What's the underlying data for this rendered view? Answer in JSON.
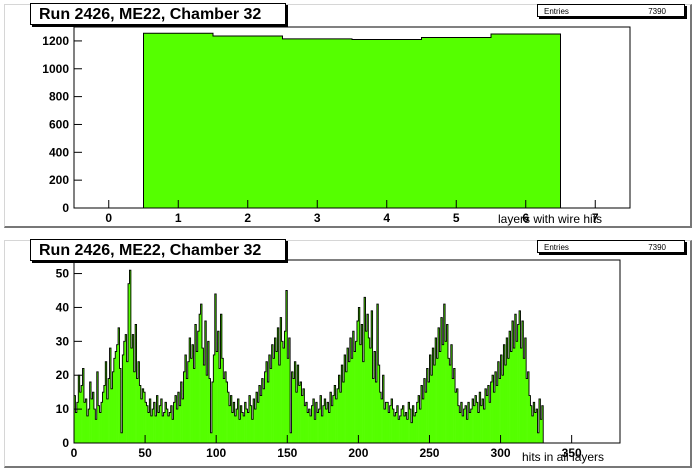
{
  "chart_data": [
    {
      "type": "bar",
      "title": "Run 2426, ME22, Chamber 32",
      "xlabel": "layers with wire hits",
      "ylabel": "",
      "stats": {
        "label": "Entries",
        "value": "7390"
      },
      "xlim": [
        -0.5,
        7.5
      ],
      "ylim": [
        0,
        1300
      ],
      "x_ticks": [
        0,
        1,
        2,
        3,
        4,
        5,
        6,
        7
      ],
      "y_ticks": [
        0,
        200,
        400,
        600,
        800,
        1000,
        1200
      ],
      "categories": [
        1,
        2,
        3,
        4,
        5,
        6
      ],
      "values": [
        1255,
        1235,
        1215,
        1210,
        1225,
        1250
      ],
      "fill_color": "#55ff00",
      "grid": false
    },
    {
      "type": "bar",
      "title": "Run 2426, ME22, Chamber 32",
      "xlabel": "hits in all layers",
      "ylabel": "",
      "stats": {
        "label": "Entries",
        "value": "7390"
      },
      "xlim": [
        0,
        384
      ],
      "ylim": [
        0,
        54
      ],
      "x_ticks": [
        0,
        50,
        100,
        150,
        200,
        250,
        300,
        350
      ],
      "y_ticks": [
        0,
        10,
        20,
        30,
        40,
        50
      ],
      "bin_width": 1,
      "values": [
        14,
        9,
        12,
        20,
        15,
        17,
        22,
        12,
        13,
        8,
        10,
        18,
        13,
        15,
        10,
        7,
        21,
        11,
        9,
        12,
        15,
        17,
        24,
        13,
        19,
        28,
        16,
        21,
        25,
        27,
        29,
        34,
        22,
        3,
        26,
        30,
        32,
        24,
        47,
        51,
        28,
        32,
        21,
        35,
        19,
        24,
        17,
        13,
        16,
        15,
        12,
        11,
        9,
        13,
        8,
        10,
        12,
        8,
        14,
        9,
        11,
        13,
        8,
        9,
        12,
        10,
        8,
        9,
        11,
        7,
        12,
        14,
        10,
        15,
        11,
        18,
        13,
        21,
        26,
        19,
        24,
        31,
        25,
        29,
        22,
        35,
        27,
        33,
        38,
        41,
        28,
        23,
        36,
        20,
        30,
        19,
        3,
        18,
        26,
        44,
        27,
        33,
        22,
        38,
        25,
        19,
        21,
        18,
        15,
        11,
        14,
        9,
        12,
        8,
        10,
        13,
        7,
        11,
        9,
        8,
        12,
        10,
        9,
        14,
        11,
        7,
        13,
        10,
        15,
        12,
        17,
        14,
        19,
        16,
        21,
        24,
        18,
        26,
        22,
        29,
        25,
        31,
        27,
        34,
        23,
        37,
        30,
        28,
        33,
        45,
        25,
        31,
        3,
        21,
        19,
        24,
        15,
        23,
        17,
        18,
        14,
        16,
        11,
        12,
        9,
        10,
        8,
        11,
        13,
        7,
        12,
        9,
        10,
        14,
        8,
        11,
        13,
        10,
        12,
        9,
        15,
        11,
        14,
        17,
        13,
        16,
        20,
        15,
        23,
        18,
        26,
        21,
        28,
        24,
        31,
        25,
        33,
        27,
        30,
        36,
        40,
        29,
        35,
        24,
        43,
        33,
        38,
        31,
        28,
        39,
        19,
        27,
        18,
        41,
        23,
        15,
        13,
        20,
        10,
        12,
        12,
        9,
        11,
        13,
        10,
        8,
        9,
        11,
        7,
        8,
        10,
        11,
        8,
        9,
        7,
        12,
        10,
        6,
        11,
        8,
        9,
        12,
        14,
        10,
        17,
        13,
        19,
        15,
        22,
        18,
        26,
        20,
        28,
        23,
        31,
        25,
        34,
        27,
        37,
        29,
        41,
        30,
        35,
        25,
        23,
        29,
        19,
        22,
        15,
        16,
        11,
        9,
        12,
        8,
        10,
        11,
        7,
        12,
        9,
        10,
        13,
        11,
        14,
        12,
        9,
        15,
        11,
        13,
        10,
        16,
        14,
        17,
        12,
        18,
        20,
        15,
        21,
        17,
        24,
        19,
        26,
        20,
        29,
        23,
        31,
        25,
        33,
        27,
        36,
        28,
        38,
        30,
        35,
        39,
        28,
        36,
        25,
        31,
        19,
        21,
        14,
        11,
        8,
        12,
        9,
        10,
        3,
        13,
        7,
        11
      ],
      "fill_color": "#55ff00",
      "grid": false
    }
  ]
}
